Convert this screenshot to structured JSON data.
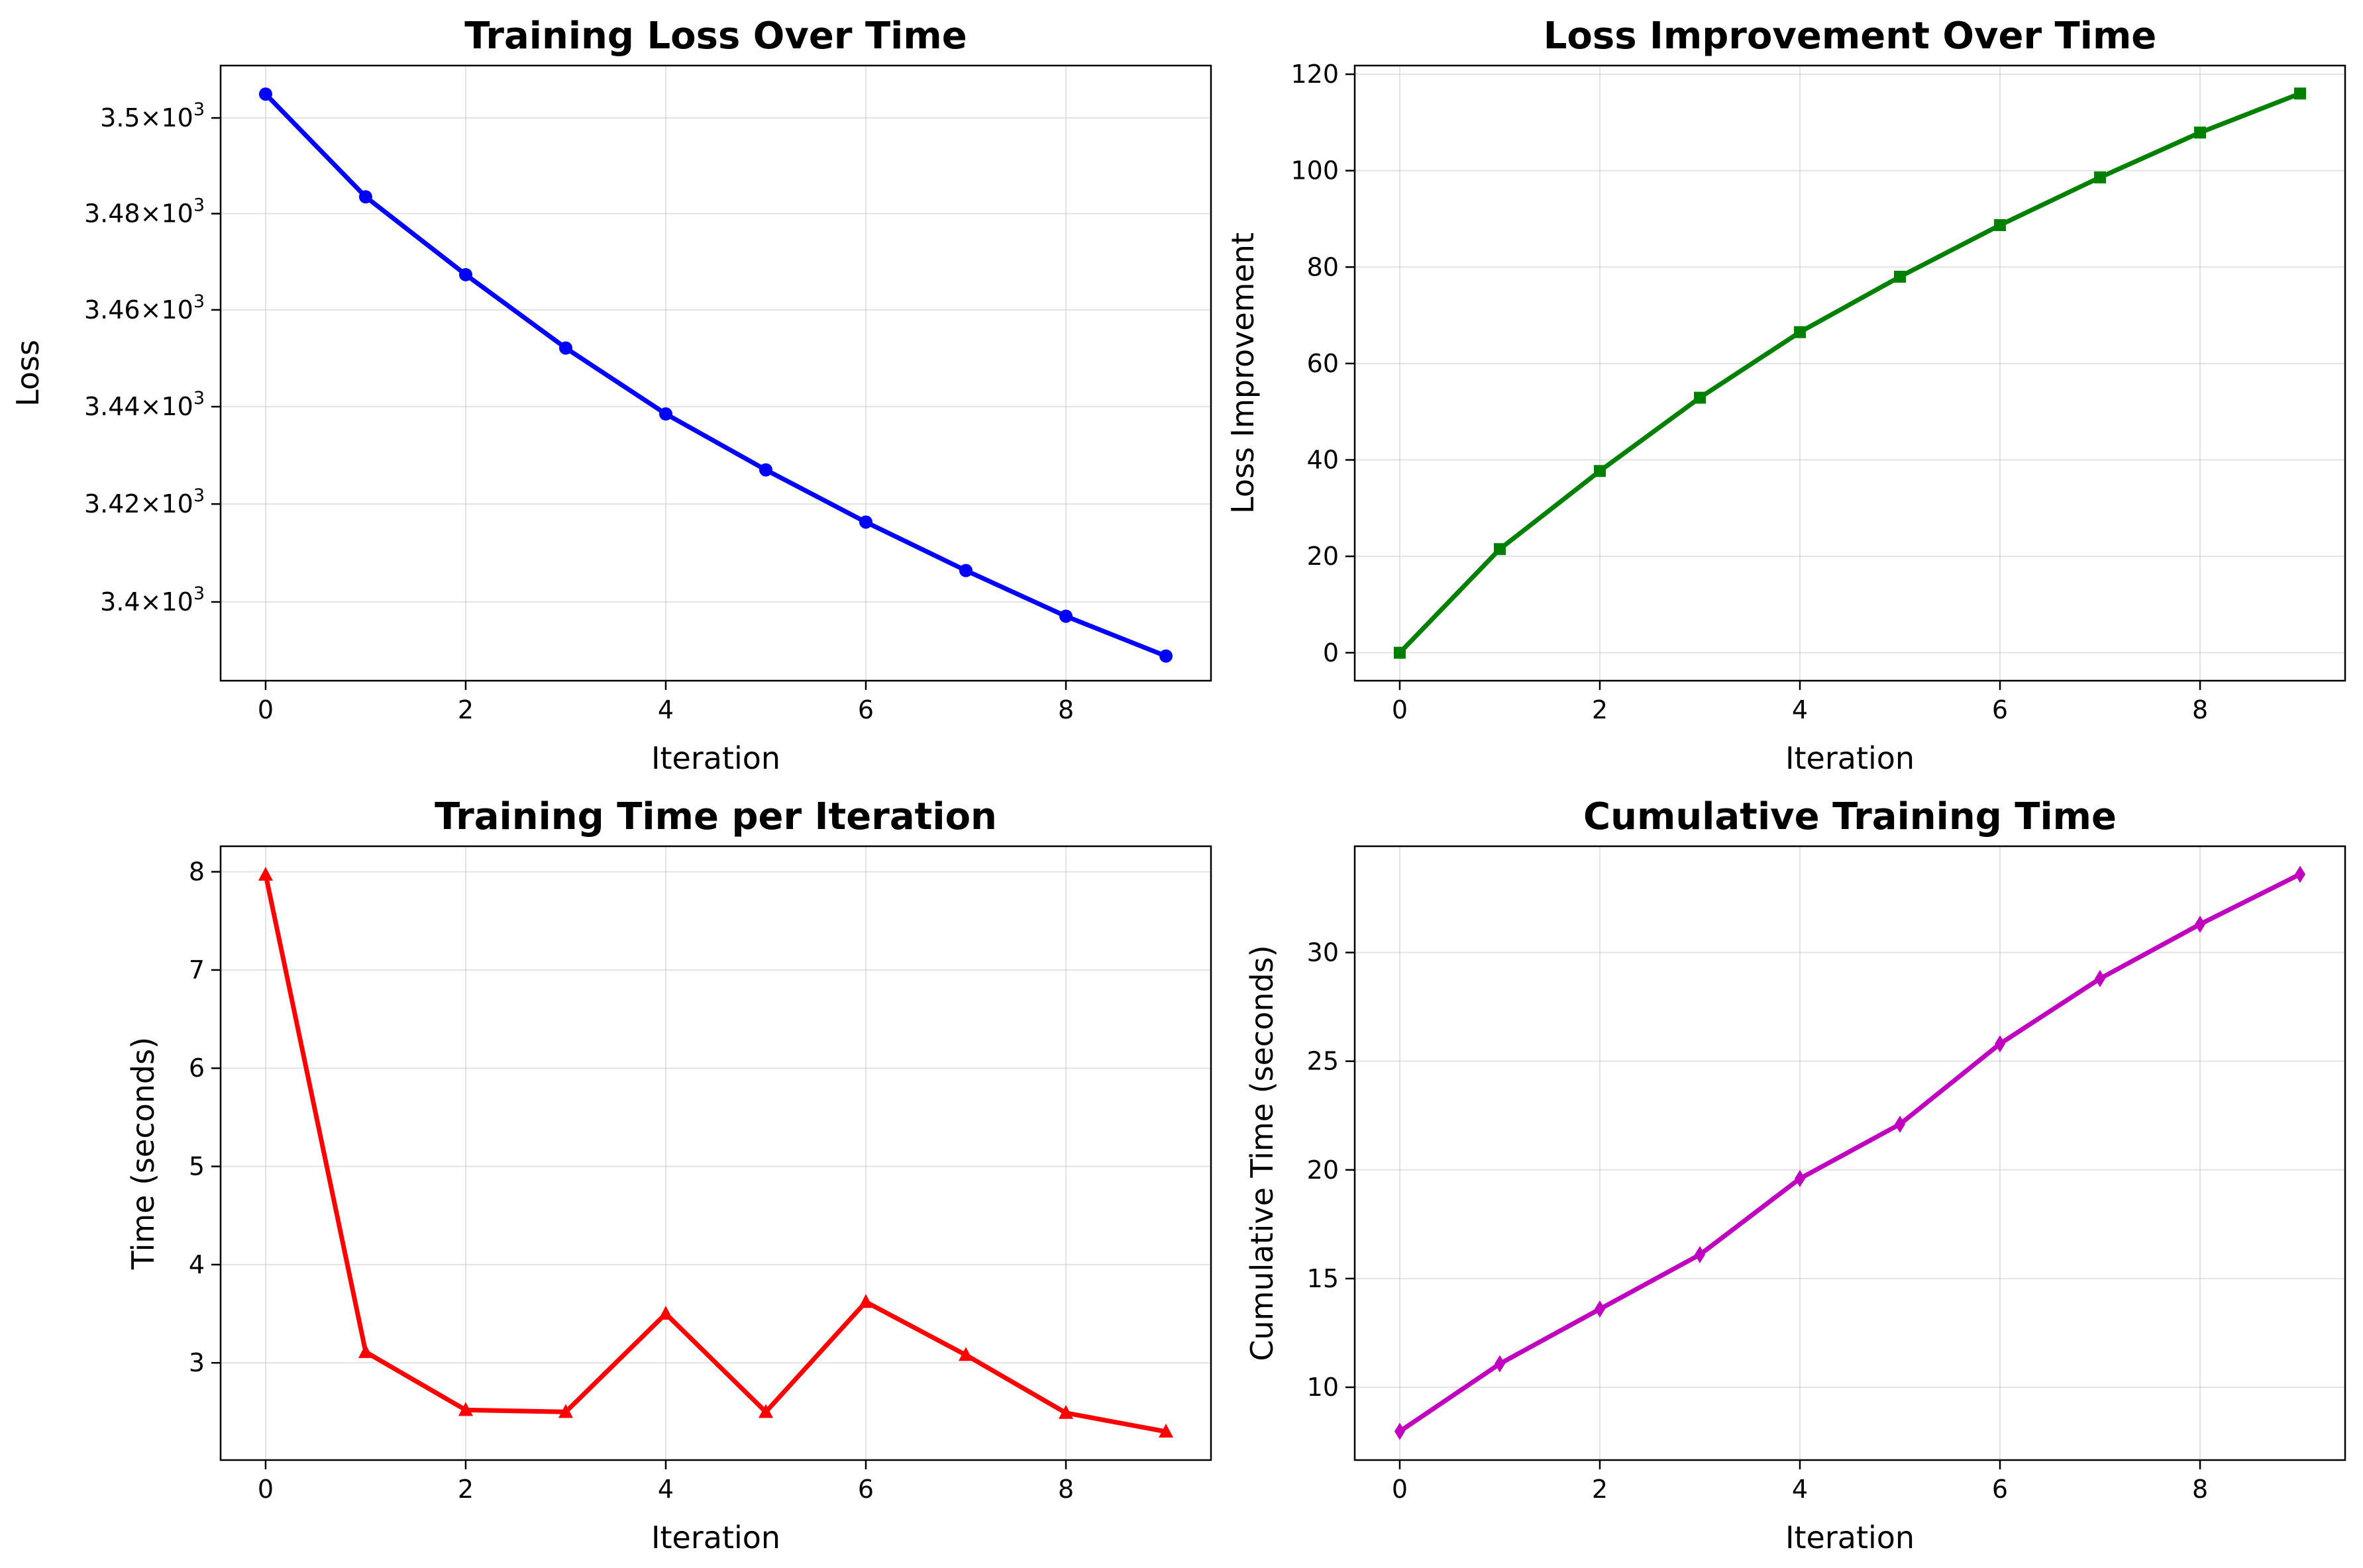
{
  "chart_data": [
    {
      "type": "line",
      "title": "Training Loss Over Time",
      "xlabel": "Iteration",
      "ylabel": "Loss",
      "yscale": "log",
      "grid": true,
      "x": [
        0,
        1,
        2,
        3,
        4,
        5,
        6,
        7,
        8,
        9
      ],
      "series": [
        {
          "values": [
            3505,
            3483.5,
            3467.3,
            3452.1,
            3438.5,
            3427,
            3416.3,
            3406.4,
            3397.1,
            3389
          ],
          "color": "#0000ff",
          "marker": "circle"
        }
      ],
      "xlim": [
        -0.45,
        9.45
      ],
      "ylim": [
        3384,
        3511
      ],
      "xticks": [
        0,
        2,
        4,
        6,
        8
      ],
      "xticklabels": [
        "0",
        "2",
        "4",
        "6",
        "8"
      ],
      "yticks": [
        3400,
        3420,
        3440,
        3460,
        3480,
        3500
      ],
      "yticklabels": [
        {
          "mantissa": "3.4",
          "times": "×",
          "base": "10",
          "exp": "3"
        },
        {
          "mantissa": "3.42",
          "times": "×",
          "base": "10",
          "exp": "3"
        },
        {
          "mantissa": "3.44",
          "times": "×",
          "base": "10",
          "exp": "3"
        },
        {
          "mantissa": "3.46",
          "times": "×",
          "base": "10",
          "exp": "3"
        },
        {
          "mantissa": "3.48",
          "times": "×",
          "base": "10",
          "exp": "3"
        },
        {
          "mantissa": "3.5",
          "times": "×",
          "base": "10",
          "exp": "3"
        }
      ]
    },
    {
      "type": "line",
      "title": "Loss Improvement Over Time",
      "xlabel": "Iteration",
      "ylabel": "Loss Improvement",
      "grid": true,
      "x": [
        0,
        1,
        2,
        3,
        4,
        5,
        6,
        7,
        8,
        9
      ],
      "series": [
        {
          "values": [
            0,
            21.5,
            37.7,
            52.9,
            66.5,
            78,
            88.7,
            98.6,
            107.9,
            116
          ],
          "color": "#008000",
          "marker": "square"
        }
      ],
      "xlim": [
        -0.45,
        9.45
      ],
      "ylim": [
        -5.8,
        121.8
      ],
      "xticks": [
        0,
        2,
        4,
        6,
        8
      ],
      "xticklabels": [
        "0",
        "2",
        "4",
        "6",
        "8"
      ],
      "yticks": [
        0,
        20,
        40,
        60,
        80,
        100,
        120
      ],
      "yticklabels": [
        "0",
        "20",
        "40",
        "60",
        "80",
        "100",
        "120"
      ]
    },
    {
      "type": "line",
      "title": "Training Time per Iteration",
      "xlabel": "Iteration",
      "ylabel": "Time (seconds)",
      "grid": true,
      "x": [
        0,
        1,
        2,
        3,
        4,
        5,
        6,
        7,
        8,
        9
      ],
      "series": [
        {
          "values": [
            7.97,
            3.11,
            2.52,
            2.5,
            3.5,
            2.5,
            3.62,
            3.08,
            2.49,
            2.3
          ],
          "color": "#ff0000",
          "marker": "triangle"
        }
      ],
      "xlim": [
        -0.45,
        9.45
      ],
      "ylim": [
        2.01,
        8.26
      ],
      "xticks": [
        0,
        2,
        4,
        6,
        8
      ],
      "xticklabels": [
        "0",
        "2",
        "4",
        "6",
        "8"
      ],
      "yticks": [
        3,
        4,
        5,
        6,
        7,
        8
      ],
      "yticklabels": [
        "3",
        "4",
        "5",
        "6",
        "7",
        "8"
      ]
    },
    {
      "type": "line",
      "title": "Cumulative Training Time",
      "xlabel": "Iteration",
      "ylabel": "Cumulative Time (seconds)",
      "grid": true,
      "x": [
        0,
        1,
        2,
        3,
        4,
        5,
        6,
        7,
        8,
        9
      ],
      "series": [
        {
          "values": [
            7.97,
            11.08,
            13.6,
            16.1,
            19.6,
            22.1,
            25.8,
            28.8,
            31.3,
            33.6
          ],
          "color": "#bf00bf",
          "marker": "diamond"
        }
      ],
      "xlim": [
        -0.45,
        9.45
      ],
      "ylim": [
        6.65,
        34.89
      ],
      "xticks": [
        0,
        2,
        4,
        6,
        8
      ],
      "xticklabels": [
        "0",
        "2",
        "4",
        "6",
        "8"
      ],
      "yticks": [
        10,
        15,
        20,
        25,
        30
      ],
      "yticklabels": [
        "10",
        "15",
        "20",
        "25",
        "30"
      ]
    }
  ]
}
